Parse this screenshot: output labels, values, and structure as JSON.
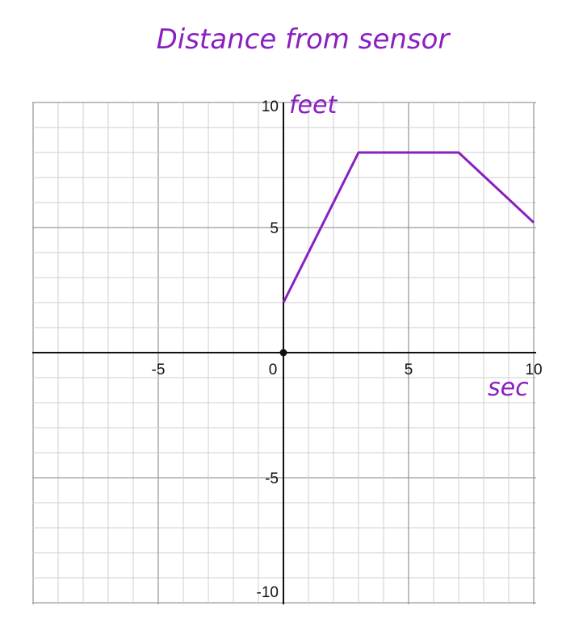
{
  "chart_data": {
    "type": "line",
    "title": "Distance from sensor",
    "xlabel": "sec",
    "ylabel": "feet",
    "xlim": [
      -10,
      10
    ],
    "ylim": [
      -10,
      10
    ],
    "grid": true,
    "x_ticks": [
      -5,
      0,
      5,
      10
    ],
    "y_ticks": [
      10,
      5,
      -5,
      -10
    ],
    "x_tick_labels": [
      "-5",
      "0",
      "5",
      "10"
    ],
    "y_tick_labels": [
      "10",
      "5",
      "-5",
      "-10"
    ],
    "series": [
      {
        "x": [
          0,
          3,
          7,
          10
        ],
        "y": [
          2,
          8,
          8,
          5.2
        ]
      }
    ],
    "points": [
      {
        "x": 0,
        "y": 0
      }
    ],
    "colors": {
      "series": "#8a1fc0",
      "axis": "#111111",
      "grid_major": "#9a9a9a",
      "grid_minor": "#cfcfcf"
    }
  }
}
